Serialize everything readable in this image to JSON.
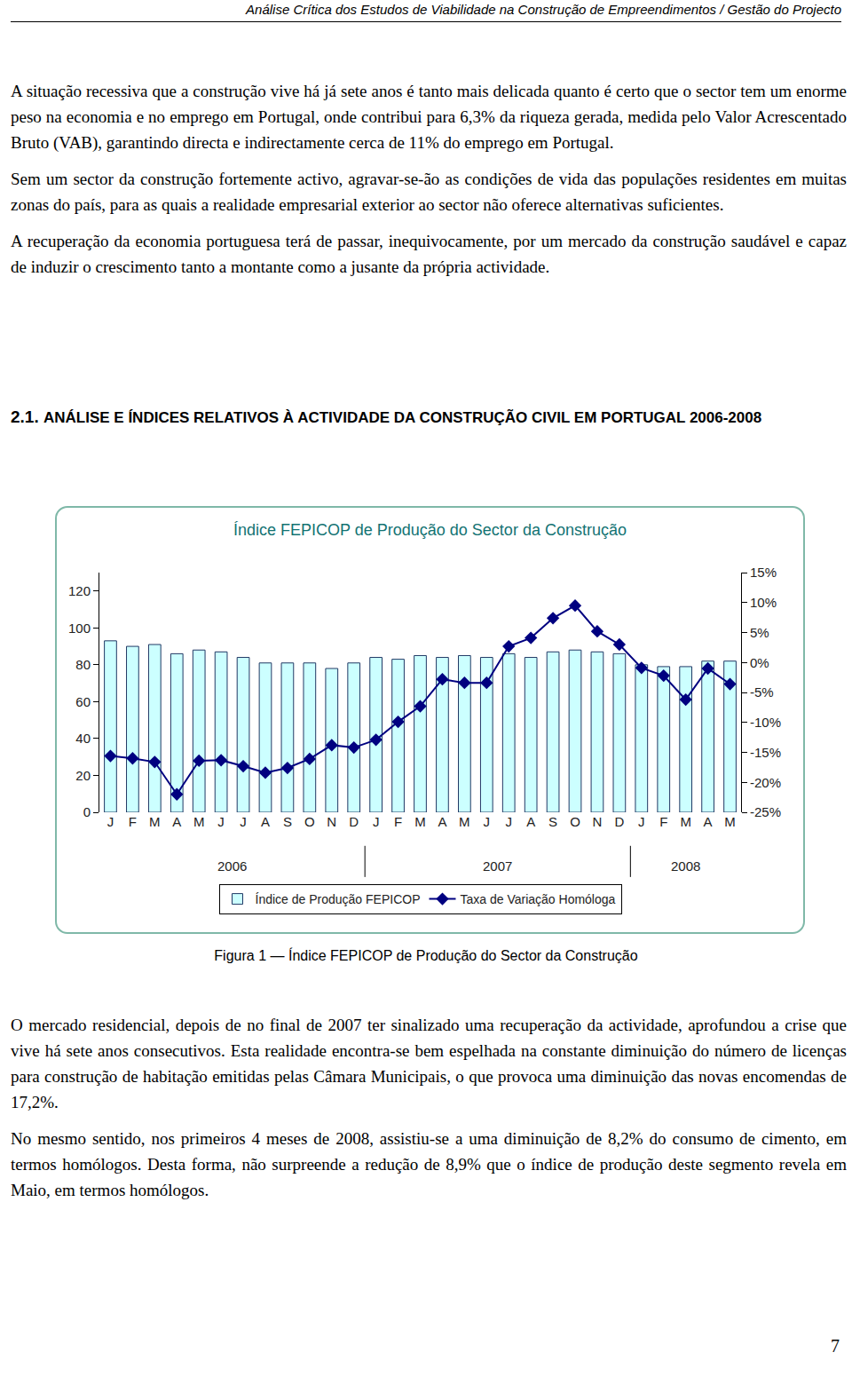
{
  "header": "Análise Crítica dos Estudos de Viabilidade na Construção de Empreendimentos / Gestão do Projecto",
  "paragraphs": [
    "A situação recessiva que a construção vive há já sete anos é tanto mais delicada quanto é certo que o sector tem um enorme peso na economia e no emprego em Portugal, onde contribui para 6,3% da riqueza gerada, medida pelo Valor Acrescentado Bruto (VAB), garantindo directa e indirectamente cerca de 11% do emprego em Portugal.",
    "Sem um sector da construção fortemente activo, agravar-se-ão as condições de vida das populações residentes em muitas zonas do país, para as quais a realidade empresarial exterior ao sector não oferece alternativas suficientes.",
    "A recuperação da economia portuguesa terá de passar, inequivocamente, por um mercado da construção saudável e capaz de induzir o crescimento tanto a montante como a jusante da própria actividade."
  ],
  "section": {
    "number": "2.1.",
    "title": "ANÁLISE E ÍNDICES RELATIVOS À ACTIVIDADE DA CONSTRUÇÃO CIVIL EM PORTUGAL 2006-2008"
  },
  "chart_data": {
    "type": "bar",
    "title": "Índice FEPICOP de Produção do Sector da Construção",
    "categories": [
      "J",
      "F",
      "M",
      "A",
      "M",
      "J",
      "J",
      "A",
      "S",
      "O",
      "N",
      "D",
      "J",
      "F",
      "M",
      "A",
      "M",
      "J",
      "J",
      "A",
      "S",
      "O",
      "N",
      "D",
      "J",
      "F",
      "M",
      "A",
      "M"
    ],
    "groups": [
      {
        "label": "2006",
        "count": 12
      },
      {
        "label": "2007",
        "count": 12
      },
      {
        "label": "2008",
        "count": 5
      }
    ],
    "series": [
      {
        "name": "Índice de Produção FEPICOP",
        "type": "bar",
        "color": "#ccffff",
        "values": [
          93,
          90,
          91,
          86,
          88,
          87,
          84,
          81,
          81,
          81,
          78,
          81,
          84,
          83,
          85,
          84,
          85,
          84,
          86,
          84,
          87,
          88,
          87,
          86,
          80,
          79,
          79,
          82,
          82
        ]
      },
      {
        "name": "Taxa de Variação Homóloga",
        "type": "line",
        "color": "#000080",
        "marker": "diamond",
        "axis": "y2",
        "values": [
          -15.6,
          -16,
          -16.6,
          -22,
          -16.4,
          -16.3,
          -17.3,
          -18.4,
          -17.6,
          -16.1,
          -13.8,
          -14.2,
          -12.9,
          -9.9,
          -7.3,
          -2.8,
          -3.4,
          -3.4,
          2.7,
          4.1,
          7.4,
          9.5,
          5.2,
          3.0,
          -0.9,
          -2.2,
          -6.2,
          -1.0,
          -3.6
        ]
      }
    ],
    "ylim": [
      0,
      130
    ],
    "yticks": [
      0,
      20,
      40,
      60,
      80,
      100,
      120
    ],
    "y2lim": [
      -25,
      15
    ],
    "y2ticks": [
      {
        "value": -25,
        "label": "-25%"
      },
      {
        "value": -20,
        "label": "-20%"
      },
      {
        "value": -15,
        "label": "-15%"
      },
      {
        "value": -10,
        "label": "-10%"
      },
      {
        "value": -5,
        "label": "-5%"
      },
      {
        "value": 0,
        "label": "0%"
      },
      {
        "value": 5,
        "label": "5%"
      },
      {
        "value": 10,
        "label": "10%"
      },
      {
        "value": 15,
        "label": "15%"
      }
    ],
    "grid": false,
    "legend": "bottom"
  },
  "caption": "Figura 1 — Índice FEPICOP de Produção do Sector da Construção",
  "paragraphs_after": [
    "O mercado residencial, depois de no final de 2007 ter sinalizado uma recuperação da actividade, aprofundou a crise que vive há sete anos consecutivos. Esta realidade encontra-se bem espelhada na constante diminuição do número de licenças para construção de habitação emitidas pelas Câmara Municipais, o que provoca uma diminuição das novas encomendas de 17,2%.",
    "No mesmo sentido, nos primeiros 4 meses de 2008, assistiu-se a uma diminuição de 8,2% do consumo de cimento, em termos homólogos. Desta forma, não surpreende a redução de 8,9% que o índice de produção deste segmento revela em Maio, em termos homólogos."
  ],
  "page_number": 7
}
